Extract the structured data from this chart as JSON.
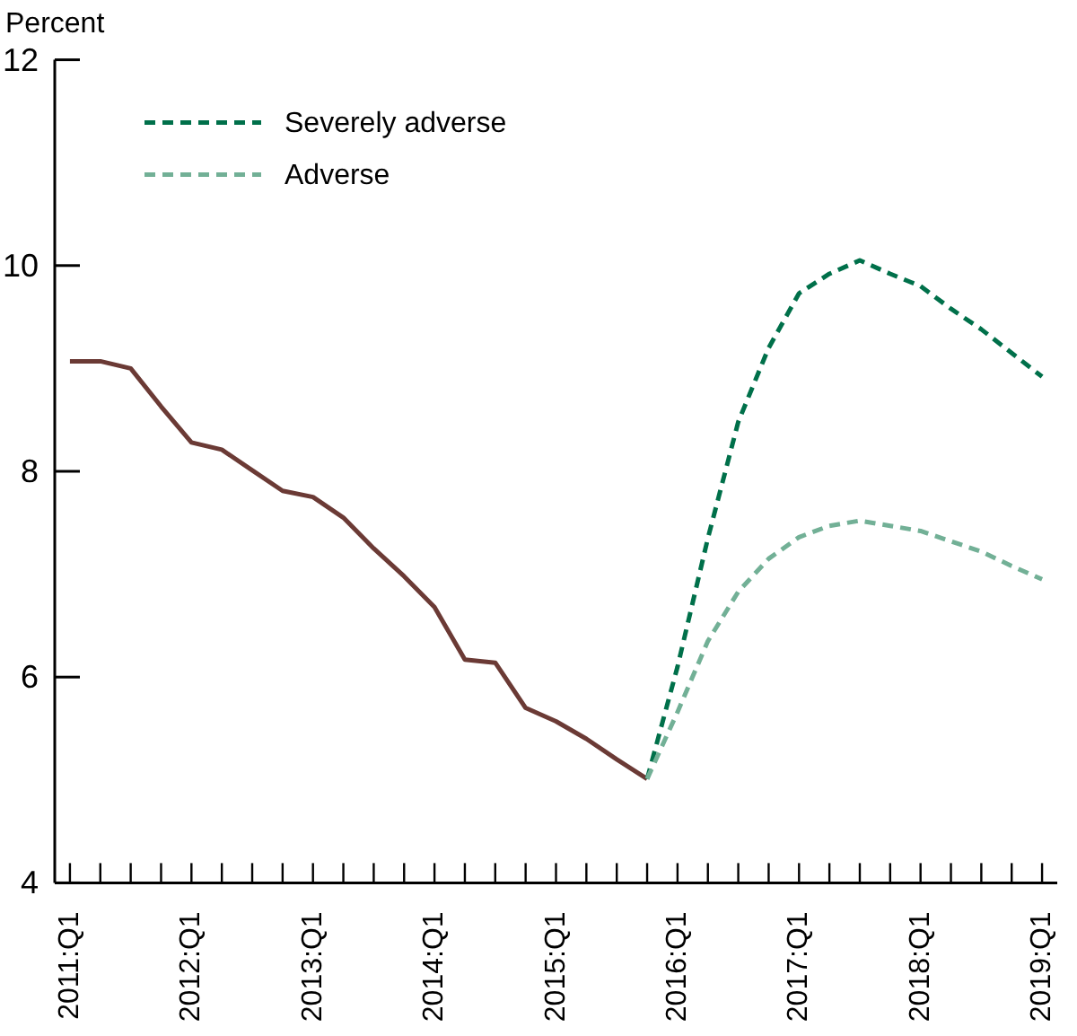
{
  "chart_data": {
    "type": "line",
    "ylabel": "Percent",
    "categories": [
      "2011:Q1",
      null,
      null,
      null,
      "2012:Q1",
      null,
      null,
      null,
      "2013:Q1",
      null,
      null,
      null,
      "2014:Q1",
      null,
      null,
      null,
      "2015:Q1",
      null,
      null,
      null,
      "2016:Q1",
      null,
      null,
      null,
      "2017:Q1",
      null,
      null,
      null,
      "2018:Q1",
      null,
      null,
      null,
      "2019:Q1"
    ],
    "ylim": [
      4,
      12
    ],
    "yticks": [
      4,
      6,
      8,
      10,
      12
    ],
    "legend": "top left",
    "series": [
      {
        "color": "#6b3a35",
        "line_style": "solid",
        "values": [
          9.07,
          9.07,
          9.0,
          8.63,
          8.28,
          8.21,
          8.01,
          7.81,
          7.75,
          7.55,
          7.25,
          6.98,
          6.68,
          6.17,
          6.14,
          5.7,
          5.57,
          5.4,
          5.2,
          5.01,
          null,
          null,
          null,
          null,
          null,
          null,
          null,
          null,
          null,
          null,
          null,
          null,
          null
        ]
      },
      {
        "name": "Severely adverse",
        "color": "#00704a",
        "line_style": "dashed",
        "values": [
          null,
          null,
          null,
          null,
          null,
          null,
          null,
          null,
          null,
          null,
          null,
          null,
          null,
          null,
          null,
          null,
          null,
          null,
          null,
          5.01,
          6.1,
          7.35,
          8.48,
          9.2,
          9.73,
          9.92,
          10.05,
          9.92,
          9.8,
          9.58,
          9.38,
          9.15,
          8.92
        ]
      },
      {
        "name": "Adverse",
        "color": "#72b096",
        "line_style": "dashed",
        "values": [
          null,
          null,
          null,
          null,
          null,
          null,
          null,
          null,
          null,
          null,
          null,
          null,
          null,
          null,
          null,
          null,
          null,
          null,
          null,
          5.01,
          5.66,
          6.35,
          6.83,
          7.15,
          7.36,
          7.47,
          7.52,
          7.47,
          7.42,
          7.32,
          7.22,
          7.08,
          6.95
        ]
      }
    ]
  }
}
